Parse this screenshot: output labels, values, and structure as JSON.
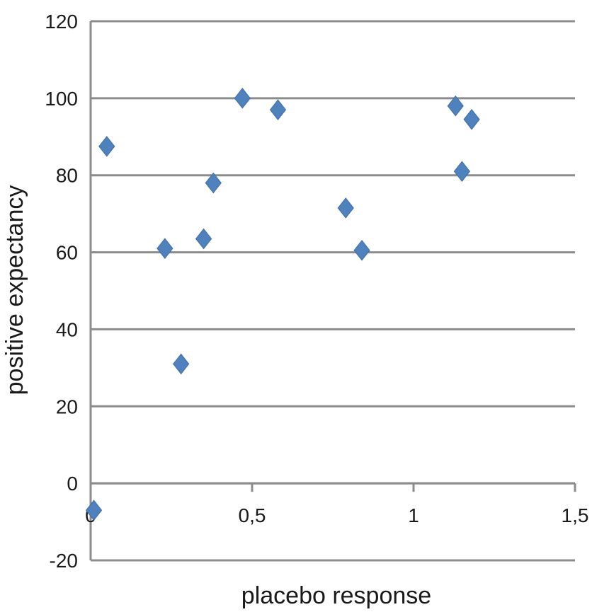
{
  "chart_data": {
    "type": "scatter",
    "title": "",
    "xlabel": "placebo response",
    "ylabel": "positive expectancy",
    "xlim": [
      0,
      1.5
    ],
    "ylim": [
      -20,
      120
    ],
    "xticks": [
      "0",
      "0,5",
      "1",
      "1,5"
    ],
    "yticks": [
      "-20",
      "0",
      "20",
      "40",
      "60",
      "80",
      "100",
      "120"
    ],
    "grid": "horizontal",
    "legend": "none",
    "marker": "diamond",
    "color": "#4f81bd",
    "points": [
      {
        "x": 0.01,
        "y": -7
      },
      {
        "x": 0.05,
        "y": 87.5
      },
      {
        "x": 0.23,
        "y": 61
      },
      {
        "x": 0.28,
        "y": 31
      },
      {
        "x": 0.35,
        "y": 63.5
      },
      {
        "x": 0.38,
        "y": 78
      },
      {
        "x": 0.47,
        "y": 100
      },
      {
        "x": 0.58,
        "y": 97
      },
      {
        "x": 0.79,
        "y": 71.5
      },
      {
        "x": 0.84,
        "y": 60.5
      },
      {
        "x": 1.13,
        "y": 98
      },
      {
        "x": 1.15,
        "y": 81
      },
      {
        "x": 1.18,
        "y": 94.5
      }
    ]
  }
}
